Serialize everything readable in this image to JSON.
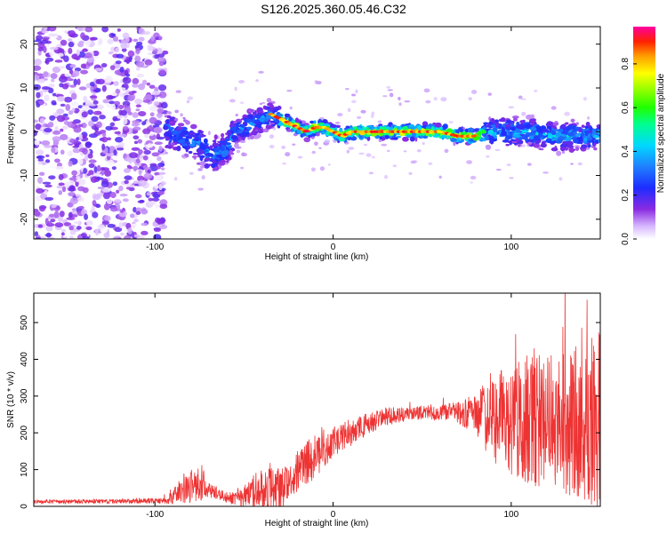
{
  "title": "S126.2025.360.05.46.C32",
  "chart_data": [
    {
      "type": "heatmap",
      "title": "S126.2025.360.05.46.C32",
      "xlabel": "Height of straight line (km)",
      "ylabel": "Frequency (Hz)",
      "xlim": [
        -168,
        150
      ],
      "ylim": [
        -24.5,
        24
      ],
      "xticks": [
        -100,
        0,
        100
      ],
      "yticks": [
        -20,
        -10,
        0,
        10,
        20
      ],
      "colorbar": {
        "label": "Normalized spectral amplitude",
        "range": [
          0.0,
          0.97
        ],
        "ticks": [
          0.0,
          0.2,
          0.4,
          0.6,
          0.8
        ]
      },
      "ridge": {
        "x": [
          -93,
          -85,
          -80,
          -75,
          -70,
          -65,
          -60,
          -55,
          -50,
          -45,
          -40,
          -35,
          -30,
          -25,
          -20,
          -15,
          -10,
          -5,
          0,
          5,
          10,
          20,
          30,
          40,
          50,
          60,
          70,
          80,
          90,
          100,
          110,
          120,
          130,
          140,
          150
        ],
        "freq": [
          0,
          -1,
          -2,
          -3,
          -5,
          -5,
          -4,
          0,
          1,
          2,
          3,
          4,
          3,
          2,
          1,
          0,
          1,
          1,
          0,
          -1,
          0,
          0,
          0,
          0,
          0,
          0,
          -1,
          -1,
          0,
          0,
          0,
          -1,
          -1,
          -1,
          -1
        ]
      }
    },
    {
      "type": "line",
      "xlabel": "Height of straight line (km)",
      "ylabel": "SNR (10 * v/v)",
      "xlim": [
        -168,
        150
      ],
      "ylim": [
        0,
        580
      ],
      "xticks": [
        -100,
        0,
        100
      ],
      "yticks": [
        0,
        100,
        200,
        300,
        400,
        500
      ],
      "color": "#ee3333",
      "series": [
        {
          "name": "SNR",
          "x": [
            -168,
            -120,
            -95,
            -90,
            -85,
            -80,
            -75,
            -70,
            -65,
            -60,
            -55,
            -50,
            -45,
            -40,
            -35,
            -30,
            -25,
            -20,
            -15,
            -10,
            -5,
            0,
            10,
            20,
            30,
            40,
            50,
            60,
            70,
            80,
            90,
            100,
            110,
            120,
            130,
            140,
            150
          ],
          "mean": [
            12,
            14,
            15,
            25,
            45,
            55,
            50,
            45,
            35,
            25,
            20,
            25,
            35,
            50,
            50,
            45,
            60,
            90,
            120,
            135,
            150,
            175,
            200,
            225,
            245,
            250,
            255,
            255,
            255,
            250,
            240,
            240,
            235,
            230,
            230,
            235,
            235
          ],
          "amp": [
            5,
            6,
            8,
            20,
            35,
            50,
            35,
            25,
            15,
            15,
            20,
            30,
            50,
            60,
            60,
            60,
            50,
            60,
            60,
            60,
            50,
            40,
            40,
            30,
            25,
            20,
            20,
            20,
            30,
            60,
            120,
            160,
            180,
            180,
            200,
            220,
            260
          ]
        }
      ]
    }
  ]
}
